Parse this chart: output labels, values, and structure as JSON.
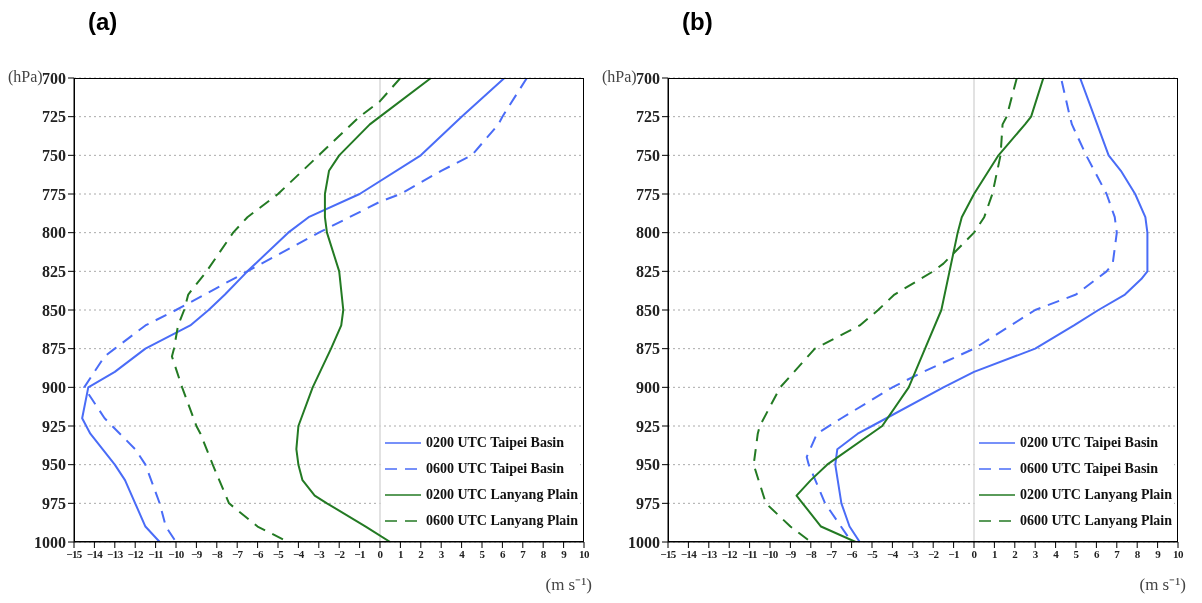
{
  "chart_data": [
    {
      "type": "line",
      "title": "(a)",
      "xlabel": "(m s⁻¹)",
      "ylabel": "(hPa)",
      "xlim": [
        -15,
        10
      ],
      "xticks": [
        -15,
        -14,
        -13,
        -12,
        -11,
        -10,
        -9,
        -8,
        -7,
        -6,
        -5,
        -4,
        -3,
        -2,
        -1,
        0,
        1,
        2,
        3,
        4,
        5,
        6,
        7,
        8,
        9,
        10
      ],
      "ylim": [
        1000,
        700
      ],
      "yticks": [
        700,
        725,
        750,
        775,
        800,
        825,
        850,
        875,
        900,
        925,
        950,
        975,
        1000
      ],
      "grid": "y",
      "legend": "bottom right",
      "ref_lines": [
        {
          "axis": "x",
          "value": 0,
          "color": "#d9d9d9"
        }
      ],
      "series": [
        {
          "name": "0200 UTC Taipei Basin",
          "color": "#4a6cf7",
          "line_style": "solid",
          "x": [
            6.1,
            4.0,
            2.0,
            -1.0,
            -3.5,
            -4.5,
            -6.5,
            -7.6,
            -8.4,
            -9.3,
            -11.5,
            -13.0,
            -14.3,
            -14.6,
            -14.2,
            -13.0,
            -12.5,
            -12.0,
            -11.5,
            -10.8
          ],
          "values": [
            700,
            725,
            750,
            775,
            790,
            800,
            825,
            840,
            850,
            860,
            875,
            890,
            900,
            920,
            930,
            950,
            960,
            975,
            990,
            1000
          ]
        },
        {
          "name": "0600 UTC Taipei Basin",
          "color": "#4a6cf7",
          "line_style": "dashed",
          "x": [
            7.2,
            6.0,
            5.8,
            4.5,
            3.0,
            1.0,
            0,
            -3.0,
            -6.5,
            -10.0,
            -11.5,
            -13.0,
            -13.5,
            -14.0,
            -14.5,
            -13.5,
            -12.0,
            -11.5,
            -10.8,
            -10.5,
            -10.0
          ],
          "values": [
            700,
            725,
            730,
            750,
            760,
            775,
            780,
            800,
            825,
            850,
            860,
            875,
            880,
            890,
            900,
            920,
            940,
            950,
            975,
            990,
            1000
          ]
        },
        {
          "name": "0200 UTC Lanyang Plain",
          "color": "#237a23",
          "line_style": "solid",
          "x": [
            2.5,
            0,
            -0.5,
            -2.0,
            -2.5,
            -2.7,
            -2.7,
            -2.6,
            -2.0,
            -1.8,
            -1.9,
            -2.4,
            -3.3,
            -4.0,
            -4.1,
            -4.0,
            -3.8,
            -3.2,
            -2.6,
            -0.7,
            0.5
          ],
          "values": [
            700,
            725,
            730,
            750,
            760,
            775,
            790,
            800,
            825,
            850,
            860,
            875,
            900,
            925,
            940,
            950,
            960,
            970,
            975,
            990,
            1000
          ]
        },
        {
          "name": "0600 UTC Lanyang Plain",
          "color": "#237a23",
          "line_style": "dashed",
          "x": [
            1.0,
            0,
            -1.0,
            -3.0,
            -5.0,
            -6.5,
            -7.2,
            -8.5,
            -9.4,
            -9.6,
            -9.9,
            -10.1,
            -10.2,
            -9.7,
            -9.0,
            -8.8,
            -8.2,
            -7.4,
            -6.0,
            -4.5
          ],
          "values": [
            700,
            715,
            725,
            750,
            775,
            790,
            800,
            825,
            840,
            850,
            860,
            875,
            880,
            900,
            925,
            930,
            950,
            975,
            990,
            1000
          ]
        }
      ]
    },
    {
      "type": "line",
      "title": "(b)",
      "xlabel": "(m s⁻¹)",
      "ylabel": "(hPa)",
      "xlim": [
        -15,
        10
      ],
      "xticks": [
        -15,
        -14,
        -13,
        -12,
        -11,
        -10,
        -9,
        -8,
        -7,
        -6,
        -5,
        -4,
        -3,
        -2,
        -1,
        0,
        1,
        2,
        3,
        4,
        5,
        6,
        7,
        8,
        9,
        10
      ],
      "ylim": [
        1000,
        700
      ],
      "yticks": [
        700,
        725,
        750,
        775,
        800,
        825,
        850,
        875,
        900,
        925,
        950,
        975,
        1000
      ],
      "grid": "y",
      "legend": "bottom right",
      "ref_lines": [
        {
          "axis": "x",
          "value": 0,
          "color": "#d9d9d9"
        }
      ],
      "series": [
        {
          "name": "0200 UTC Taipei Basin",
          "color": "#4a6cf7",
          "line_style": "solid",
          "x": [
            5.2,
            5.9,
            6.6,
            7.2,
            7.9,
            8.4,
            8.5,
            8.5,
            8.2,
            7.4,
            6.1,
            4.9,
            3.0,
            0,
            -1.5,
            -5.0,
            -5.7,
            -6.7,
            -6.8,
            -6.5,
            -6.1,
            -5.6
          ],
          "values": [
            700,
            725,
            750,
            760,
            775,
            790,
            800,
            825,
            830,
            840,
            850,
            860,
            875,
            890,
            900,
            925,
            930,
            940,
            950,
            975,
            990,
            1000
          ]
        },
        {
          "name": "0600 UTC Taipei Basin",
          "color": "#4a6cf7",
          "line_style": "dashed",
          "x": [
            4.3,
            4.7,
            4.8,
            5.5,
            6.5,
            6.9,
            7.0,
            6.8,
            6.5,
            5.0,
            3.0,
            0,
            -2.5,
            -4.0,
            -6.5,
            -7.7,
            -8.2,
            -8.1,
            -7.3,
            -6.0
          ],
          "values": [
            702,
            725,
            730,
            750,
            775,
            790,
            800,
            820,
            825,
            840,
            850,
            875,
            890,
            900,
            920,
            930,
            945,
            950,
            975,
            1000
          ]
        },
        {
          "name": "0200 UTC Lanyang Plain",
          "color": "#237a23",
          "line_style": "solid",
          "x": [
            3.4,
            2.8,
            2.5,
            1.2,
            0,
            -0.6,
            -0.8,
            -1.2,
            -1.6,
            -2.4,
            -3.2,
            -4.5,
            -7.2,
            -8.0,
            -8.7,
            -8.4,
            -7.5,
            -5.8
          ],
          "values": [
            700,
            725,
            730,
            750,
            775,
            790,
            800,
            825,
            850,
            875,
            900,
            925,
            950,
            960,
            970,
            975,
            990,
            1000
          ]
        },
        {
          "name": "0600 UTC Lanyang Plain",
          "color": "#237a23",
          "line_style": "dashed",
          "x": [
            2.1,
            1.6,
            1.4,
            1.3,
            0.9,
            0.5,
            0,
            -1.5,
            -2.0,
            -3.9,
            -4.7,
            -5.6,
            -7.8,
            -9.5,
            -10.5,
            -10.6,
            -10.8,
            -10.2,
            -9.0,
            -8.0
          ],
          "values": [
            700,
            725,
            730,
            750,
            775,
            790,
            800,
            820,
            825,
            840,
            850,
            860,
            875,
            900,
            925,
            930,
            950,
            975,
            990,
            1000
          ]
        }
      ]
    }
  ]
}
